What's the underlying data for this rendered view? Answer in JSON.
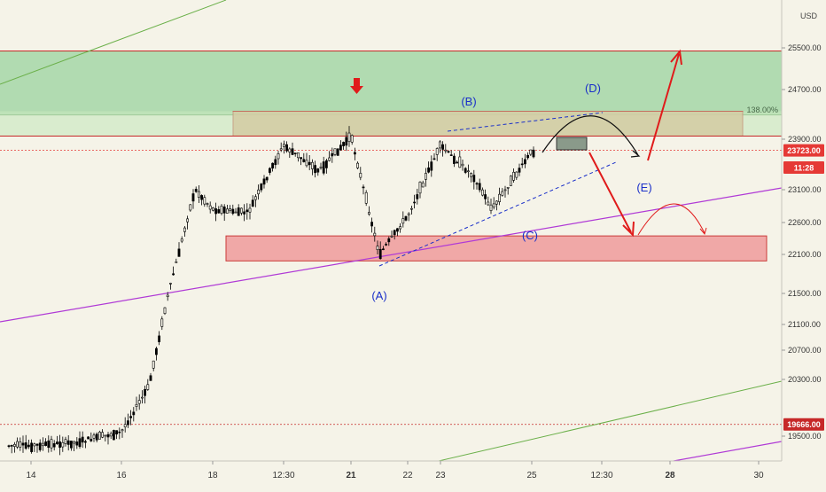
{
  "chart_data": {
    "type": "candlestick",
    "currency": "USD",
    "x_tick_labels": [
      "14",
      "16",
      "18",
      "12:30",
      "21",
      "22",
      "23",
      "25",
      "12:30",
      "28",
      "30"
    ],
    "y_tick_labels": [
      "25500.00",
      "24700.00",
      "23900.00",
      "23100.00",
      "22600.00",
      "22100.00",
      "21500.00",
      "21100.00",
      "20700.00",
      "20300.00",
      "19500.00"
    ],
    "ylim": [
      19300,
      26000
    ],
    "price_badges": [
      {
        "label": "23723.00",
        "color": "#e53935"
      },
      {
        "label": "11:28",
        "color": "#e53935"
      },
      {
        "label": "19666.00",
        "color": "#c62828"
      }
    ],
    "fib_label": "138.00%",
    "wave_labels": [
      "(A)",
      "(B)",
      "(C)",
      "(D)",
      "(E)"
    ],
    "price_path": [
      [
        "14",
        19380
      ],
      [
        "15",
        19420
      ],
      [
        "16",
        19560
      ],
      [
        "16.5",
        20200
      ],
      [
        "17",
        21500
      ],
      [
        "17.5",
        23100
      ],
      [
        "18",
        22800
      ],
      [
        "19",
        22750
      ],
      [
        "12:30",
        23800
      ],
      [
        "20",
        23400
      ],
      [
        "21",
        23950
      ],
      [
        "21.5",
        22100
      ],
      [
        "22",
        22700
      ],
      [
        "23",
        23800
      ],
      [
        "24",
        23300
      ],
      [
        "24.5",
        22800
      ],
      [
        "25",
        23700
      ]
    ],
    "zones": [
      {
        "name": "green-target-zone",
        "from": 24290,
        "to": 25440,
        "color": "#a5d6a7"
      },
      {
        "name": "upper-resistance-box",
        "from": 23950,
        "to": 24350,
        "color": "#e8a583"
      },
      {
        "name": "lower-support-box",
        "from": 22000,
        "to": 22390,
        "color": "#f0a0a0"
      }
    ],
    "colors": {
      "background": "#f5f3e8",
      "candles": "#000000",
      "wave_labels": "#1a2fc9",
      "trendline_purple": "#b03ad6",
      "channel_green": "#6bb04a",
      "arrows_red": "#e01b1b"
    },
    "legend": "none",
    "grid": false
  }
}
